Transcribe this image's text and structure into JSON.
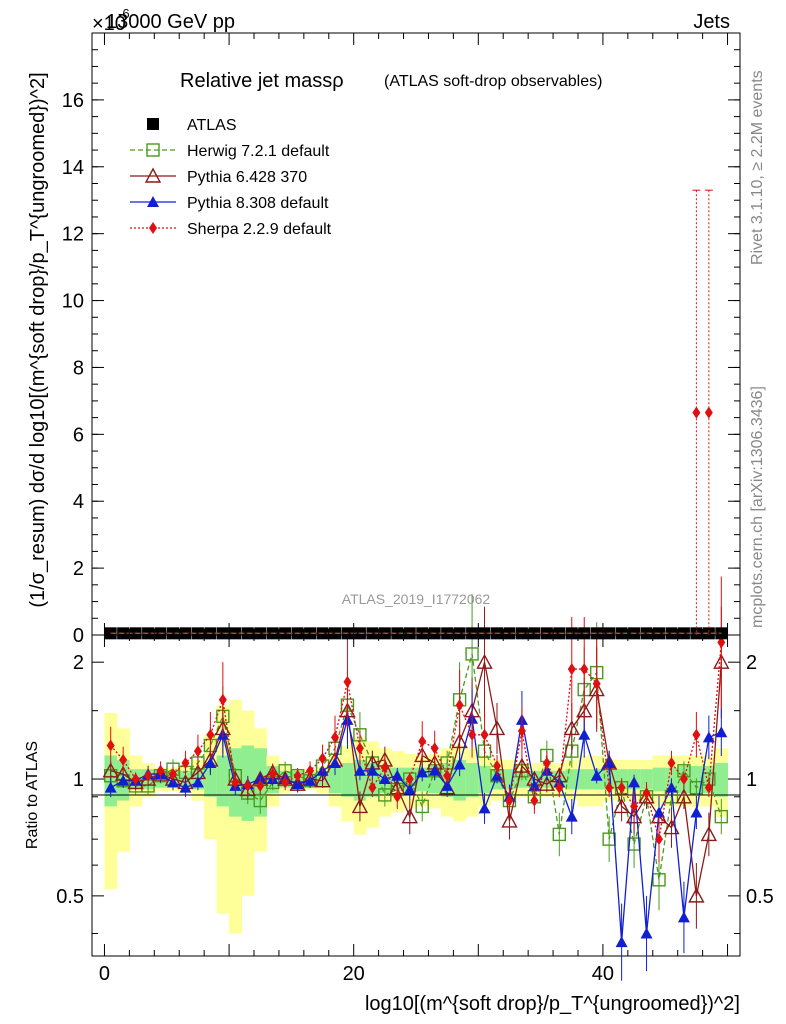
{
  "header": {
    "energy_label": "13000 GeV pp",
    "scale_label": "×10",
    "scale_exponent": "-6",
    "process_label": "Jets"
  },
  "side_labels": {
    "rivet": "Rivet 3.1.10, ≥ 2.2M events",
    "mcplots": "mcplots.cern.ch [arXiv:1306.3436]"
  },
  "chart_data": [
    {
      "type": "scatter",
      "title": "Relative jet massρ",
      "subtitle": "(ATLAS soft-drop observables)",
      "ylabel": "(1/σ_resum) dσ/d log10[(m^{soft drop}/p_T^{ungroomed})^2]",
      "analysis_label": "ATLAS_2019_I1772062",
      "ylim": [
        0,
        18
      ],
      "y_ticks": [
        0,
        2,
        4,
        6,
        8,
        10,
        12,
        14,
        16
      ],
      "legend": [
        {
          "name": "ATLAS",
          "color": "#000000",
          "marker": "filled-square"
        },
        {
          "name": "Herwig 7.2.1 default",
          "color": "#4a9a1e",
          "marker": "open-square",
          "line": "dashed"
        },
        {
          "name": "Pythia 6.428 370",
          "color": "#8b1a1a",
          "marker": "open-triangle",
          "line": "solid"
        },
        {
          "name": "Pythia 8.308 default",
          "color": "#1020d0",
          "marker": "filled-triangle",
          "line": "solid"
        },
        {
          "name": "Sherpa 2.2.9 default",
          "color": "#e01010",
          "marker": "filled-diamond",
          "line": "dotted"
        }
      ],
      "series": [
        {
          "name": "ATLAS",
          "x": [
            0.5,
            1.5,
            2.5,
            3.5,
            4.5,
            5.5,
            6.5,
            7.5,
            8.5,
            9.5,
            10.5,
            11.5,
            12.5,
            13.5,
            14.5,
            15.5,
            16.5,
            17.5,
            18.5,
            19.5,
            20.5,
            21.5,
            22.5,
            23.5,
            24.5,
            25.5,
            26.5,
            27.5,
            28.5,
            29.5,
            30.5,
            31.5,
            32.5,
            33.5,
            34.5,
            35.5,
            36.5,
            37.5,
            38.5,
            39.5,
            40.5,
            41.5,
            42.5,
            43.5,
            44.5,
            45.5,
            46.5,
            47.5,
            48.5,
            49.5
          ],
          "values": [
            0.05,
            0.05,
            0.05,
            0.05,
            0.05,
            0.05,
            0.05,
            0.05,
            0.05,
            0.05,
            0.05,
            0.05,
            0.05,
            0.05,
            0.05,
            0.05,
            0.05,
            0.05,
            0.05,
            0.05,
            0.05,
            0.05,
            0.05,
            0.05,
            0.05,
            0.05,
            0.05,
            0.05,
            0.05,
            0.05,
            0.05,
            0.05,
            0.05,
            0.05,
            0.05,
            0.05,
            0.05,
            0.05,
            0.05,
            0.05,
            0.05,
            0.05,
            0.05,
            0.05,
            0.05,
            0.05,
            0.05,
            0.05,
            0.05,
            0.05
          ]
        },
        {
          "name": "Sherpa 2.2.9 default",
          "x": [
            47.5,
            48.5
          ],
          "values": [
            6.65,
            6.65
          ],
          "errors": [
            6.65,
            6.65
          ]
        }
      ]
    },
    {
      "type": "line",
      "ylabel": "Ratio to ATLAS",
      "xlabel": "log10[(m^{soft drop}/p_T^{ungroomed})^2]",
      "ylim": [
        0.35,
        2.35
      ],
      "y_ticks": [
        0.5,
        1,
        2
      ],
      "xlim": [
        -1,
        51
      ],
      "x_ticks": [
        0,
        20,
        40
      ],
      "x": [
        0.5,
        1.5,
        2.5,
        3.5,
        4.5,
        5.5,
        6.5,
        7.5,
        8.5,
        9.5,
        10.5,
        11.5,
        12.5,
        13.5,
        14.5,
        15.5,
        16.5,
        17.5,
        18.5,
        19.5,
        20.5,
        21.5,
        22.5,
        23.5,
        24.5,
        25.5,
        26.5,
        27.5,
        28.5,
        29.5,
        30.5,
        31.5,
        32.5,
        33.5,
        34.5,
        35.5,
        36.5,
        37.5,
        38.5,
        39.5,
        40.5,
        41.5,
        42.5,
        43.5,
        44.5,
        45.5,
        46.5,
        47.5,
        48.5,
        49.5
      ],
      "band_inner": [
        0.15,
        0.12,
        0.06,
        0.06,
        0.05,
        0.05,
        0.05,
        0.06,
        0.1,
        0.15,
        0.2,
        0.22,
        0.2,
        0.08,
        0.05,
        0.05,
        0.04,
        0.05,
        0.08,
        0.1,
        0.12,
        0.1,
        0.08,
        0.07,
        0.07,
        0.07,
        0.08,
        0.1,
        0.12,
        0.1,
        0.08,
        0.06,
        0.06,
        0.05,
        0.05,
        0.05,
        0.05,
        0.06,
        0.06,
        0.06,
        0.06,
        0.06,
        0.06,
        0.06,
        0.07,
        0.07,
        0.08,
        0.08,
        0.08,
        0.1
      ],
      "band_outer": [
        0.48,
        0.35,
        0.15,
        0.1,
        0.07,
        0.07,
        0.08,
        0.12,
        0.3,
        0.55,
        0.6,
        0.5,
        0.35,
        0.15,
        0.08,
        0.06,
        0.06,
        0.08,
        0.15,
        0.22,
        0.28,
        0.25,
        0.2,
        0.18,
        0.16,
        0.15,
        0.16,
        0.2,
        0.22,
        0.2,
        0.15,
        0.12,
        0.12,
        0.1,
        0.1,
        0.1,
        0.1,
        0.12,
        0.15,
        0.15,
        0.12,
        0.12,
        0.12,
        0.12,
        0.15,
        0.15,
        0.15,
        0.15,
        0.15,
        0.2
      ],
      "series": [
        {
          "name": "Herwig 7.2.1 default",
          "values": [
            1.02,
            0.99,
            0.96,
            0.96,
            1.02,
            1.06,
            1.04,
            1.1,
            1.22,
            1.45,
            1.02,
            0.92,
            0.88,
            0.98,
            1.05,
            1.02,
            0.99,
            1.08,
            1.2,
            1.55,
            1.3,
            1.1,
            0.91,
            0.94,
            1.0,
            0.85,
            1.05,
            1.1,
            1.6,
            2.1,
            1.18,
            1.02,
            0.88,
            1.05,
            0.9,
            1.15,
            0.72,
            1.18,
            1.7,
            1.88,
            0.7,
            0.95,
            0.68,
            0.9,
            0.55,
            0.9,
            1.05,
            0.95,
            1.0,
            0.8
          ]
        },
        {
          "name": "Pythia 6.428 370",
          "values": [
            1.05,
            1.03,
            0.98,
            1.0,
            1.03,
            1.0,
            0.98,
            1.04,
            1.12,
            1.35,
            1.0,
            0.94,
            1.0,
            1.04,
            1.0,
            0.97,
            1.0,
            0.99,
            1.12,
            1.5,
            0.85,
            1.1,
            1.12,
            0.95,
            0.8,
            1.15,
            1.1,
            0.95,
            1.25,
            1.5,
            2.0,
            1.35,
            0.78,
            1.08,
            1.0,
            0.97,
            1.02,
            1.35,
            1.5,
            1.7,
            1.1,
            0.85,
            0.8,
            0.9,
            0.8,
            0.75,
            0.9,
            0.5,
            0.72,
            2.0
          ]
        },
        {
          "name": "Pythia 8.308 default",
          "values": [
            0.95,
            0.99,
            0.99,
            1.03,
            1.03,
            0.98,
            0.95,
            0.98,
            1.1,
            1.3,
            0.96,
            0.97,
            1.0,
            1.0,
            1.0,
            0.97,
            0.99,
            1.05,
            1.1,
            1.42,
            1.05,
            1.05,
            1.0,
            1.02,
            0.94,
            1.04,
            1.05,
            0.96,
            1.09,
            1.43,
            0.84,
            1.02,
            0.9,
            1.42,
            0.96,
            1.05,
            0.98,
            0.8,
            1.3,
            1.02,
            1.1,
            0.38,
            0.98,
            0.4,
            0.82,
            0.95,
            0.44,
            0.82,
            1.28,
            1.32
          ]
        },
        {
          "name": "Sherpa 2.2.9 default",
          "values": [
            1.22,
            1.12,
            1.0,
            1.02,
            1.05,
            1.03,
            1.1,
            1.18,
            1.3,
            1.6,
            0.98,
            0.96,
            0.96,
            1.03,
            0.98,
            1.02,
            1.05,
            1.13,
            1.28,
            1.78,
            1.2,
            0.95,
            1.07,
            0.9,
            1.0,
            1.25,
            1.2,
            1.02,
            1.55,
            1.3,
            1.3,
            1.08,
            0.88,
            1.33,
            0.88,
            1.1,
            0.95,
            1.92,
            1.92,
            1.76,
            0.95,
            0.95,
            0.85,
            0.92,
            0.7,
            1.1,
            1.0,
            1.3,
            0.95,
            2.25
          ]
        }
      ]
    }
  ]
}
